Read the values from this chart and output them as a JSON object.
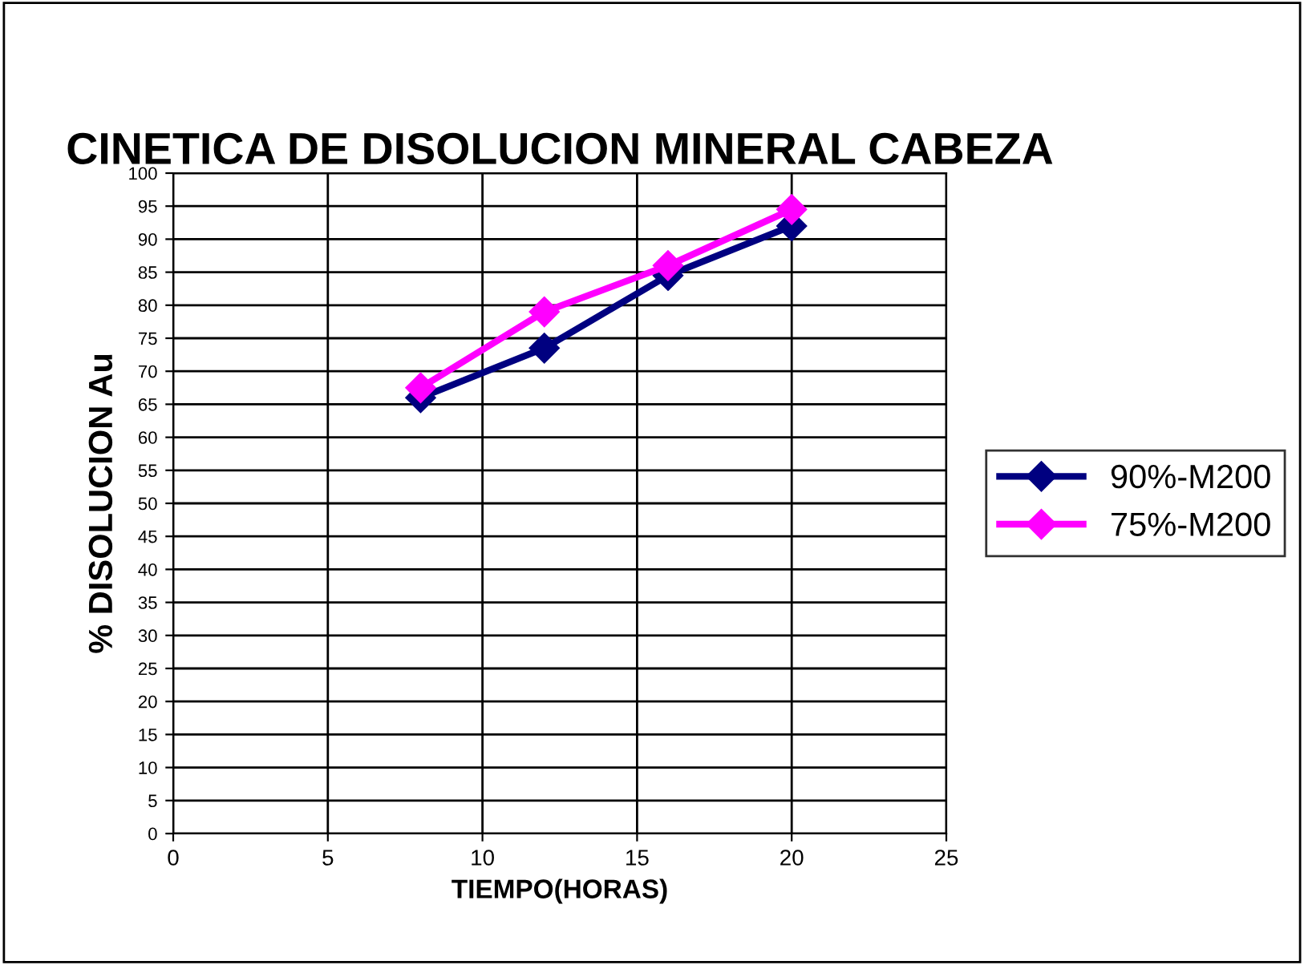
{
  "chart_data": {
    "type": "line",
    "title": "CINETICA DE DISOLUCION MINERAL CABEZA",
    "xlabel": "TIEMPO(HORAS)",
    "ylabel": "% DISOLUCION Au",
    "x": [
      8,
      12,
      16,
      20
    ],
    "series": [
      {
        "name": "90%-M200",
        "color": "#000080",
        "values": [
          66,
          73.5,
          84.5,
          92
        ]
      },
      {
        "name": "75%-M200",
        "color": "#ff00ff",
        "values": [
          67.5,
          79,
          86,
          94.5
        ]
      }
    ],
    "xlim": [
      0,
      25
    ],
    "xticks": [
      0,
      5,
      10,
      15,
      20,
      25
    ],
    "ylim": [
      0,
      100
    ],
    "yticks": [
      0,
      5,
      10,
      15,
      20,
      25,
      30,
      35,
      40,
      45,
      50,
      55,
      60,
      65,
      70,
      75,
      80,
      85,
      90,
      95,
      100
    ],
    "grid": true,
    "legend": "right",
    "marker": "diamond",
    "line_style": "solid"
  }
}
